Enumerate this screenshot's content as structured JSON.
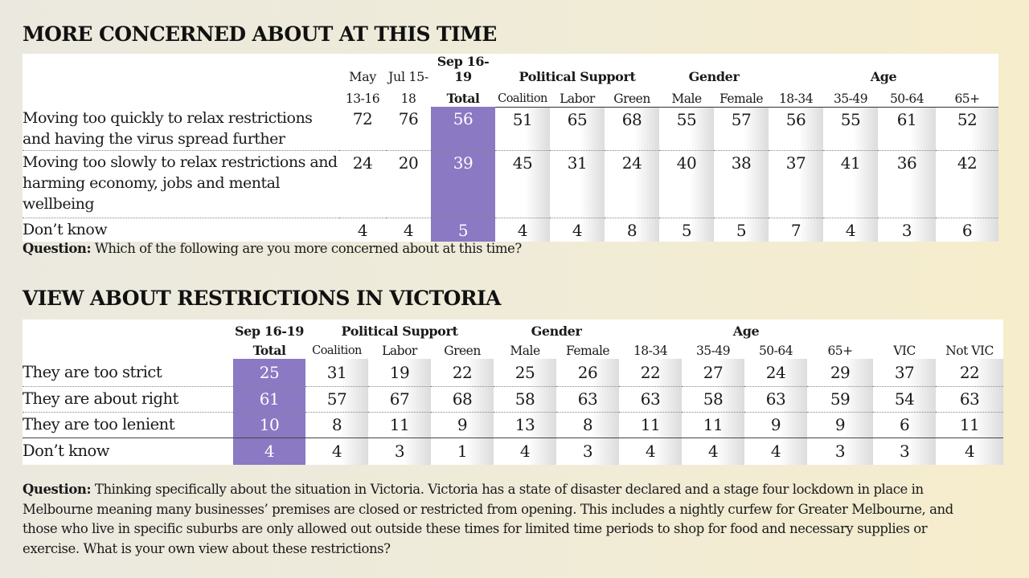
{
  "table1": {
    "title": "MORE CONCERNED ABOUT AT THIS TIME",
    "groups": {
      "political": "Political Support",
      "gender": "Gender",
      "age": "Age"
    },
    "columns": [
      {
        "line1": "May",
        "line2": "13-16"
      },
      {
        "line1": "Jul 15-",
        "line2": "18"
      },
      {
        "line1": "Sep 16-19",
        "line2": "Total"
      },
      {
        "line1": "",
        "line2": "Coalition"
      },
      {
        "line1": "",
        "line2": "Labor"
      },
      {
        "line1": "",
        "line2": "Green"
      },
      {
        "line1": "",
        "line2": "Male"
      },
      {
        "line1": "",
        "line2": "Female"
      },
      {
        "line1": "",
        "line2": "18-34"
      },
      {
        "line1": "",
        "line2": "35-49"
      },
      {
        "line1": "",
        "line2": "50-64"
      },
      {
        "line1": "",
        "line2": "65+"
      }
    ],
    "rows": [
      {
        "label": "Moving too quickly to relax restrictions and having the virus spread further",
        "values": [
          "72",
          "76",
          "56",
          "51",
          "65",
          "68",
          "55",
          "57",
          "56",
          "55",
          "61",
          "52"
        ]
      },
      {
        "label": "Moving too slowly to relax restrictions and harming economy, jobs and mental wellbeing",
        "values": [
          "24",
          "20",
          "39",
          "45",
          "31",
          "24",
          "40",
          "38",
          "37",
          "41",
          "36",
          "42"
        ]
      },
      {
        "label": "Don’t know",
        "values": [
          "4",
          "4",
          "5",
          "4",
          "4",
          "8",
          "5",
          "5",
          "7",
          "4",
          "3",
          "6"
        ]
      }
    ],
    "question_label": "Question:",
    "question_text": "Which of the following are you more concerned about at this time?"
  },
  "table2": {
    "title": "VIEW ABOUT RESTRICTIONS IN VICTORIA",
    "groups": {
      "political": "Political Support",
      "gender": "Gender",
      "age": "Age"
    },
    "columns": [
      {
        "line1": "Sep 16-19",
        "line2": "Total"
      },
      {
        "line1": "",
        "line2": "Coalition"
      },
      {
        "line1": "",
        "line2": "Labor"
      },
      {
        "line1": "",
        "line2": "Green"
      },
      {
        "line1": "",
        "line2": "Male"
      },
      {
        "line1": "",
        "line2": "Female"
      },
      {
        "line1": "",
        "line2": "18-34"
      },
      {
        "line1": "",
        "line2": "35-49"
      },
      {
        "line1": "",
        "line2": "50-64"
      },
      {
        "line1": "",
        "line2": "65+"
      },
      {
        "line1": "",
        "line2": "VIC"
      },
      {
        "line1": "",
        "line2": "Not VIC"
      }
    ],
    "rows": [
      {
        "label": "They are too strict",
        "values": [
          "25",
          "31",
          "19",
          "22",
          "25",
          "26",
          "22",
          "27",
          "24",
          "29",
          "37",
          "22"
        ]
      },
      {
        "label": "They are about right",
        "values": [
          "61",
          "57",
          "67",
          "68",
          "58",
          "63",
          "63",
          "58",
          "63",
          "59",
          "54",
          "63"
        ]
      },
      {
        "label": "They are too lenient",
        "values": [
          "10",
          "8",
          "11",
          "9",
          "13",
          "8",
          "11",
          "11",
          "9",
          "9",
          "6",
          "11"
        ]
      },
      {
        "label": "Don’t know",
        "values": [
          "4",
          "4",
          "3",
          "1",
          "4",
          "3",
          "4",
          "4",
          "4",
          "3",
          "3",
          "4"
        ]
      }
    ],
    "question_label": "Question:",
    "question_text": "Thinking specifically about the situation in Victoria. Victoria has a state of disaster declared and a stage four lockdown in place in Melbourne meaning many businesses’ premises are closed or restricted from opening. This includes a nightly curfew for Greater Melbourne, and those who live in specific suburbs are only allowed out outside these times for limited time periods to shop for food and necessary supplies or exercise. What is your own view about these restrictions?"
  },
  "colors": {
    "highlight": "#8b79c3",
    "highlight_text": "#ffffff"
  },
  "chart_data": [
    {
      "type": "table",
      "title": "MORE CONCERNED ABOUT AT THIS TIME",
      "categories": [
        "May 13-16",
        "Jul 15-18",
        "Sep 16-19 Total",
        "Coalition",
        "Labor",
        "Green",
        "Male",
        "Female",
        "18-34",
        "35-49",
        "50-64",
        "65+"
      ],
      "series": [
        {
          "name": "Moving too quickly to relax restrictions and having the virus spread further",
          "values": [
            72,
            76,
            56,
            51,
            65,
            68,
            55,
            57,
            56,
            55,
            61,
            52
          ]
        },
        {
          "name": "Moving too slowly to relax restrictions and harming economy, jobs and mental wellbeing",
          "values": [
            24,
            20,
            39,
            45,
            31,
            24,
            40,
            38,
            37,
            41,
            36,
            42
          ]
        },
        {
          "name": "Don’t know",
          "values": [
            4,
            4,
            5,
            4,
            4,
            8,
            5,
            5,
            7,
            4,
            3,
            6
          ]
        }
      ]
    },
    {
      "type": "table",
      "title": "VIEW ABOUT RESTRICTIONS IN VICTORIA",
      "categories": [
        "Sep 16-19 Total",
        "Coalition",
        "Labor",
        "Green",
        "Male",
        "Female",
        "18-34",
        "35-49",
        "50-64",
        "65+",
        "VIC",
        "Not VIC"
      ],
      "series": [
        {
          "name": "They are too strict",
          "values": [
            25,
            31,
            19,
            22,
            25,
            26,
            22,
            27,
            24,
            29,
            37,
            22
          ]
        },
        {
          "name": "They are about right",
          "values": [
            61,
            57,
            67,
            68,
            58,
            63,
            63,
            58,
            63,
            59,
            54,
            63
          ]
        },
        {
          "name": "They are too lenient",
          "values": [
            10,
            8,
            11,
            9,
            13,
            8,
            11,
            11,
            9,
            9,
            6,
            11
          ]
        },
        {
          "name": "Don’t know",
          "values": [
            4,
            4,
            3,
            1,
            4,
            3,
            4,
            4,
            4,
            3,
            3,
            4
          ]
        }
      ]
    }
  ]
}
